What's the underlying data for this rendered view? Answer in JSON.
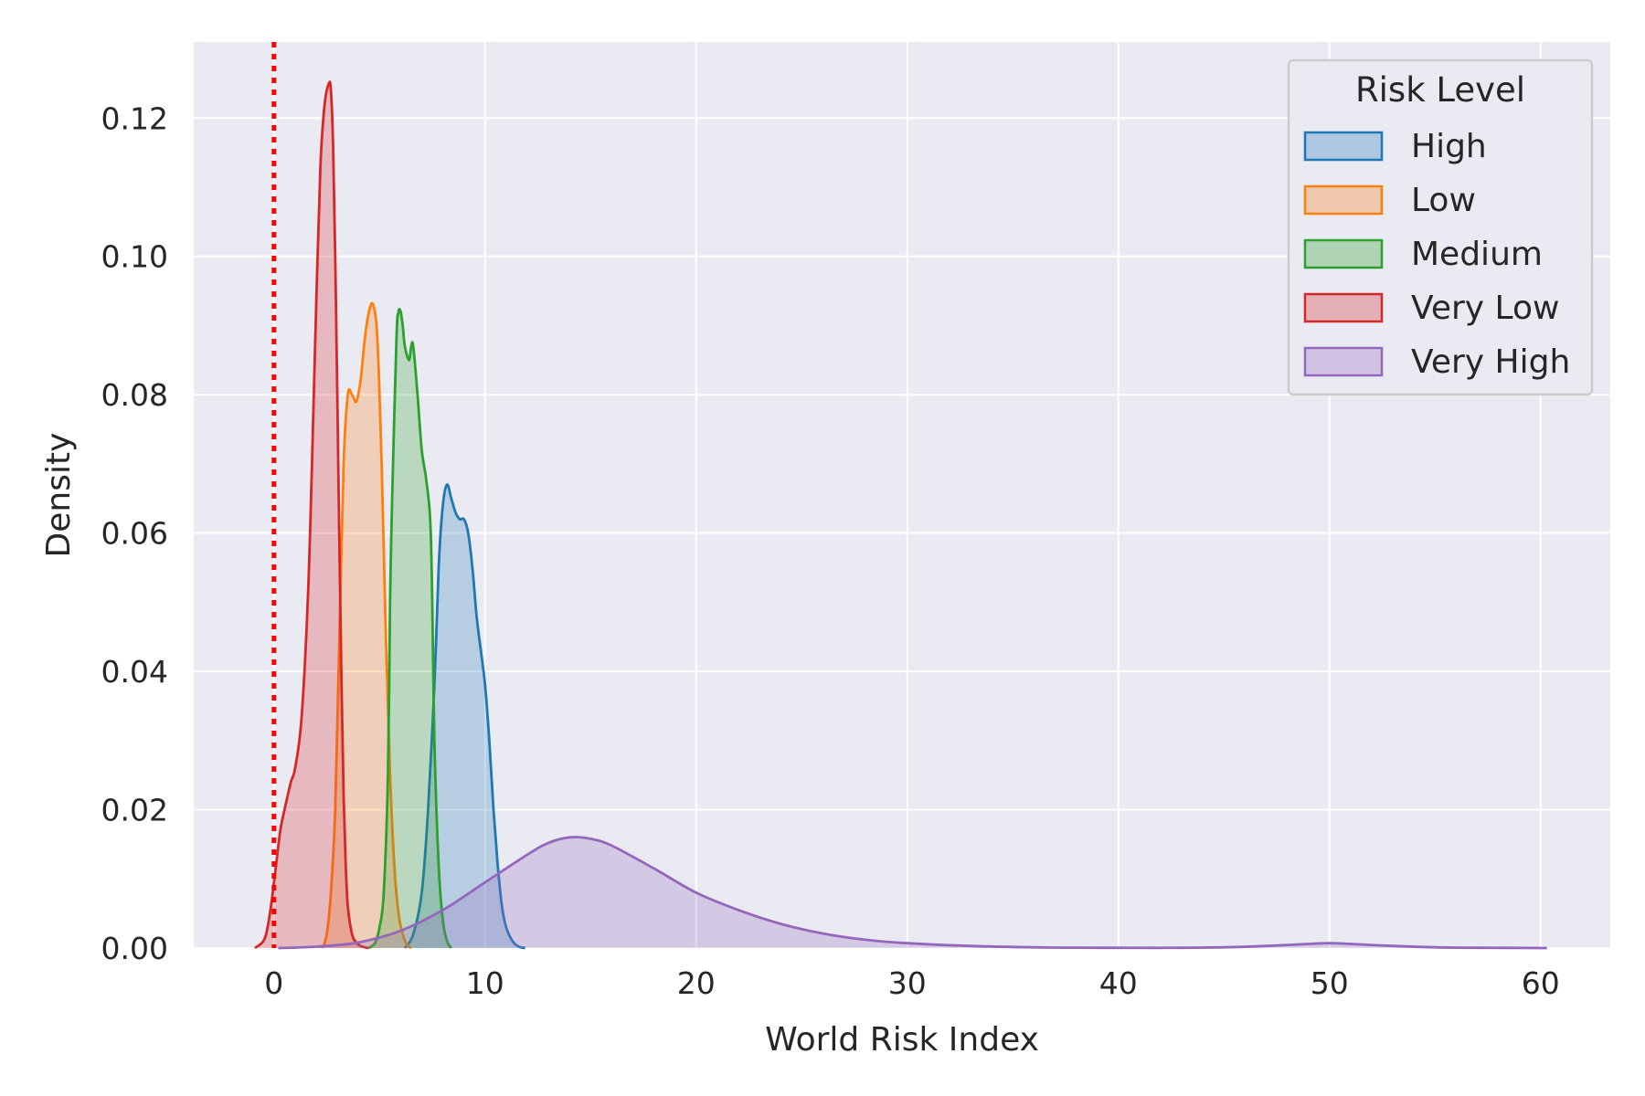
{
  "chart_data": {
    "type": "area",
    "subtype": "kde",
    "title": "",
    "xlabel": "World Risk Index",
    "ylabel": "Density",
    "xlim": [
      -3.8,
      63.3
    ],
    "ylim": [
      0,
      0.131
    ],
    "xticks": [
      0,
      10,
      20,
      30,
      40,
      50,
      60
    ],
    "yticks": [
      0.0,
      0.02,
      0.04,
      0.06,
      0.08,
      0.1,
      0.12
    ],
    "xtick_labels": [
      "0",
      "10",
      "20",
      "30",
      "40",
      "50",
      "60"
    ],
    "ytick_labels": [
      "0.00",
      "0.02",
      "0.04",
      "0.06",
      "0.08",
      "0.10",
      "0.12"
    ],
    "grid": true,
    "reference_line": {
      "x": 0,
      "color": "#ff0000",
      "style": "dotted"
    },
    "legend": {
      "title": "Risk Level",
      "placement": "top-right",
      "entries": [
        "High",
        "Low",
        "Medium",
        "Very Low",
        "Very High"
      ]
    },
    "series": [
      {
        "name": "High",
        "color": "#1f77b4",
        "x": [
          6.2,
          6.6,
          7.0,
          7.3,
          7.6,
          7.8,
          8.0,
          8.2,
          8.4,
          8.6,
          8.8,
          9.0,
          9.2,
          9.4,
          9.6,
          9.8,
          10.0,
          10.2,
          10.4,
          10.6,
          10.8,
          11.0,
          11.3,
          11.6,
          11.9
        ],
        "y": [
          0.0,
          0.002,
          0.008,
          0.02,
          0.038,
          0.055,
          0.064,
          0.067,
          0.065,
          0.063,
          0.062,
          0.062,
          0.06,
          0.055,
          0.048,
          0.043,
          0.038,
          0.03,
          0.02,
          0.012,
          0.006,
          0.003,
          0.001,
          0.0002,
          0.0
        ]
      },
      {
        "name": "Low",
        "color": "#ff7f0e",
        "x": [
          2.3,
          2.5,
          2.7,
          2.9,
          3.1,
          3.3,
          3.5,
          3.7,
          3.9,
          4.1,
          4.3,
          4.5,
          4.7,
          4.9,
          5.1,
          5.3,
          5.5,
          5.7,
          5.9,
          6.1,
          6.3,
          6.5
        ],
        "y": [
          0.0,
          0.002,
          0.008,
          0.02,
          0.045,
          0.07,
          0.08,
          0.08,
          0.079,
          0.082,
          0.088,
          0.092,
          0.093,
          0.088,
          0.07,
          0.045,
          0.025,
          0.012,
          0.005,
          0.002,
          0.0005,
          0.0
        ]
      },
      {
        "name": "Medium",
        "color": "#2ca02c",
        "x": [
          4.5,
          4.8,
          5.0,
          5.2,
          5.4,
          5.5,
          5.6,
          5.8,
          5.9,
          6.0,
          6.1,
          6.2,
          6.4,
          6.5,
          6.6,
          6.8,
          7.0,
          7.2,
          7.4,
          7.5,
          7.6,
          7.8,
          8.0,
          8.2,
          8.4
        ],
        "y": [
          0.0,
          0.0008,
          0.003,
          0.008,
          0.025,
          0.05,
          0.065,
          0.088,
          0.092,
          0.092,
          0.09,
          0.087,
          0.085,
          0.087,
          0.087,
          0.08,
          0.072,
          0.068,
          0.062,
          0.05,
          0.03,
          0.012,
          0.004,
          0.001,
          0.0
        ]
      },
      {
        "name": "Very Low",
        "color": "#d62728",
        "x": [
          -0.9,
          -0.5,
          -0.3,
          -0.1,
          0.1,
          0.3,
          0.5,
          0.8,
          1.0,
          1.3,
          1.6,
          1.8,
          2.0,
          2.2,
          2.4,
          2.6,
          2.7,
          2.8,
          2.9,
          3.0,
          3.1,
          3.2,
          3.3,
          3.4,
          3.5,
          3.7,
          3.9,
          4.1,
          4.3,
          4.5
        ],
        "y": [
          0.0,
          0.001,
          0.003,
          0.007,
          0.012,
          0.017,
          0.02,
          0.024,
          0.026,
          0.033,
          0.05,
          0.07,
          0.093,
          0.113,
          0.122,
          0.125,
          0.124,
          0.116,
          0.1,
          0.08,
          0.058,
          0.038,
          0.022,
          0.012,
          0.006,
          0.002,
          0.0008,
          0.0003,
          0.0001,
          0.0
        ]
      },
      {
        "name": "Very High",
        "color": "#9467bd",
        "x": [
          0.2,
          2,
          4,
          6,
          8,
          10,
          12,
          13,
          14,
          15,
          16,
          18,
          20,
          22,
          24,
          26,
          28,
          30,
          33,
          36,
          39,
          42,
          45,
          47,
          49,
          50,
          51,
          53,
          55,
          57,
          60.3
        ],
        "y": [
          0.0,
          0.0002,
          0.0008,
          0.0025,
          0.0055,
          0.0095,
          0.0135,
          0.0152,
          0.016,
          0.0158,
          0.0148,
          0.0115,
          0.008,
          0.0055,
          0.0035,
          0.0021,
          0.0012,
          0.0007,
          0.0003,
          0.0001,
          4e-05,
          3e-05,
          0.0001,
          0.0003,
          0.0006,
          0.0007,
          0.0006,
          0.0003,
          0.0001,
          4e-05,
          0.0
        ]
      }
    ]
  }
}
